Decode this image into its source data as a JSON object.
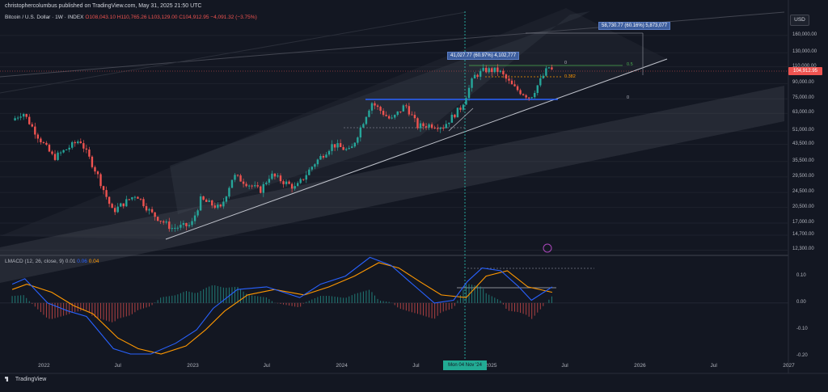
{
  "header": {
    "publisher": "christophercolumbus published on TradingView.com, May 31, 2025 21:50 UTC"
  },
  "legend": {
    "symbol": "Bitcoin / U.S. Dollar · 1W · INDEX",
    "ohlc": "O108,043.10 H110,765.26 L103,129.00 C104,912.95 −4,091.32 (−3.75%)"
  },
  "currency": "USD",
  "last_price_tag": "104,912.95",
  "crosshair_date": "Mon 04 Nov '24",
  "macd_legend": {
    "name": "LMACD (12, 26, close, 9)",
    "v1": "0.01",
    "v2": "0.06",
    "v3": "0.04"
  },
  "footer": "TradingView",
  "measure_boxes": {
    "top": "58,730.77 (60.16%) 5,873,077",
    "mid": "41,027.77 (60.97%) 4,102,777"
  },
  "fib_labels": {
    "f0_top": "0",
    "f05": "0.5",
    "f0382": "0.382",
    "f0_low": "0"
  },
  "colors": {
    "background": "#131722",
    "up": "#26a69a",
    "down": "#ef5350",
    "macd": "#2962ff",
    "signal": "#ff9800"
  },
  "chart_data": [
    {
      "type": "candlestick",
      "title": "Bitcoin / U.S. Dollar · 1W · INDEX",
      "y_scale": "log",
      "y_ticks": [
        "160,000.00",
        "130,000.00",
        "110,000.00",
        "90,000.00",
        "75,000.00",
        "63,000.00",
        "51,000.00",
        "43,500.00",
        "35,500.00",
        "29,500.00",
        "24,500.00",
        "20,500.00",
        "17,000.00",
        "14,700.00",
        "12,300.00"
      ],
      "x_ticks": [
        "2022",
        "Jul",
        "2023",
        "Jul",
        "2024",
        "Jul",
        "2025",
        "Jul",
        "2026",
        "Jul",
        "2027"
      ],
      "price_path": [
        {
          "date": "2021-10-15",
          "close": 58000
        },
        {
          "date": "2021-11-10",
          "close": 64000
        },
        {
          "date": "2021-12-20",
          "close": 47000
        },
        {
          "date": "2022-01-25",
          "close": 37000
        },
        {
          "date": "2022-03-30",
          "close": 46000
        },
        {
          "date": "2022-05-10",
          "close": 31000
        },
        {
          "date": "2022-06-18",
          "close": 19500
        },
        {
          "date": "2022-08-15",
          "close": 24000
        },
        {
          "date": "2022-09-20",
          "close": 19200
        },
        {
          "date": "2022-11-10",
          "close": 16000
        },
        {
          "date": "2022-12-28",
          "close": 16600
        },
        {
          "date": "2023-01-20",
          "close": 22500
        },
        {
          "date": "2023-03-10",
          "close": 20200
        },
        {
          "date": "2023-04-10",
          "close": 30000
        },
        {
          "date": "2023-06-15",
          "close": 25000
        },
        {
          "date": "2023-07-10",
          "close": 30300
        },
        {
          "date": "2023-09-10",
          "close": 25800
        },
        {
          "date": "2023-10-25",
          "close": 34500
        },
        {
          "date": "2023-12-10",
          "close": 43500
        },
        {
          "date": "2024-01-22",
          "close": 40000
        },
        {
          "date": "2024-03-14",
          "close": 72000
        },
        {
          "date": "2024-05-01",
          "close": 58000
        },
        {
          "date": "2024-06-05",
          "close": 70000
        },
        {
          "date": "2024-07-05",
          "close": 54000
        },
        {
          "date": "2024-08-05",
          "close": 55000
        },
        {
          "date": "2024-09-06",
          "close": 54000
        },
        {
          "date": "2024-10-20",
          "close": 68000
        },
        {
          "date": "2024-11-20",
          "close": 98000
        },
        {
          "date": "2024-12-17",
          "close": 106000
        },
        {
          "date": "2025-01-20",
          "close": 105000
        },
        {
          "date": "2025-02-25",
          "close": 86000
        },
        {
          "date": "2025-04-07",
          "close": 76000
        },
        {
          "date": "2025-05-22",
          "close": 110000
        },
        {
          "date": "2025-05-31",
          "close": 104912.95
        }
      ]
    },
    {
      "type": "line",
      "title": "LMACD (12, 26, close, 9)",
      "y_ticks": [
        "0.10",
        "0.00",
        "-0.10",
        "-0.20"
      ],
      "series": [
        {
          "name": "MACD",
          "points": [
            {
              "date": "2021-10-15",
              "value": 0.07
            },
            {
              "date": "2021-11-15",
              "value": 0.09
            },
            {
              "date": "2022-01-10",
              "value": 0.0
            },
            {
              "date": "2022-03-01",
              "value": -0.03
            },
            {
              "date": "2022-04-15",
              "value": -0.05
            },
            {
              "date": "2022-06-20",
              "value": -0.17
            },
            {
              "date": "2022-08-01",
              "value": -0.19
            },
            {
              "date": "2022-09-20",
              "value": -0.19
            },
            {
              "date": "2022-11-20",
              "value": -0.15
            },
            {
              "date": "2023-01-10",
              "value": -0.1
            },
            {
              "date": "2023-02-20",
              "value": -0.02
            },
            {
              "date": "2023-04-20",
              "value": 0.05
            },
            {
              "date": "2023-07-01",
              "value": 0.06
            },
            {
              "date": "2023-09-20",
              "value": 0.02
            },
            {
              "date": "2023-11-10",
              "value": 0.07
            },
            {
              "date": "2024-01-10",
              "value": 0.1
            },
            {
              "date": "2024-03-10",
              "value": 0.17
            },
            {
              "date": "2024-05-01",
              "value": 0.14
            },
            {
              "date": "2024-06-15",
              "value": 0.08
            },
            {
              "date": "2024-08-15",
              "value": 0.0
            },
            {
              "date": "2024-10-01",
              "value": 0.01
            },
            {
              "date": "2024-11-04",
              "value": 0.08
            },
            {
              "date": "2024-12-10",
              "value": 0.13
            },
            {
              "date": "2025-01-25",
              "value": 0.12
            },
            {
              "date": "2025-03-10",
              "value": 0.06
            },
            {
              "date": "2025-04-10",
              "value": 0.01
            },
            {
              "date": "2025-05-31",
              "value": 0.06
            }
          ]
        },
        {
          "name": "Signal",
          "points": [
            {
              "date": "2021-10-15",
              "value": 0.05
            },
            {
              "date": "2021-11-20",
              "value": 0.07
            },
            {
              "date": "2022-01-20",
              "value": 0.04
            },
            {
              "date": "2022-03-15",
              "value": -0.01
            },
            {
              "date": "2022-05-01",
              "value": -0.04
            },
            {
              "date": "2022-07-01",
              "value": -0.13
            },
            {
              "date": "2022-08-20",
              "value": -0.17
            },
            {
              "date": "2022-10-15",
              "value": -0.19
            },
            {
              "date": "2022-12-15",
              "value": -0.16
            },
            {
              "date": "2023-02-01",
              "value": -0.1
            },
            {
              "date": "2023-03-20",
              "value": -0.03
            },
            {
              "date": "2023-05-15",
              "value": 0.03
            },
            {
              "date": "2023-07-20",
              "value": 0.05
            },
            {
              "date": "2023-10-01",
              "value": 0.03
            },
            {
              "date": "2023-12-01",
              "value": 0.06
            },
            {
              "date": "2024-02-01",
              "value": 0.1
            },
            {
              "date": "2024-04-01",
              "value": 0.15
            },
            {
              "date": "2024-05-20",
              "value": 0.13
            },
            {
              "date": "2024-07-10",
              "value": 0.08
            },
            {
              "date": "2024-09-01",
              "value": 0.03
            },
            {
              "date": "2024-11-01",
              "value": 0.02
            },
            {
              "date": "2024-12-20",
              "value": 0.1
            },
            {
              "date": "2025-02-10",
              "value": 0.12
            },
            {
              "date": "2025-04-01",
              "value": 0.06
            },
            {
              "date": "2025-05-31",
              "value": 0.04
            }
          ]
        }
      ]
    }
  ]
}
